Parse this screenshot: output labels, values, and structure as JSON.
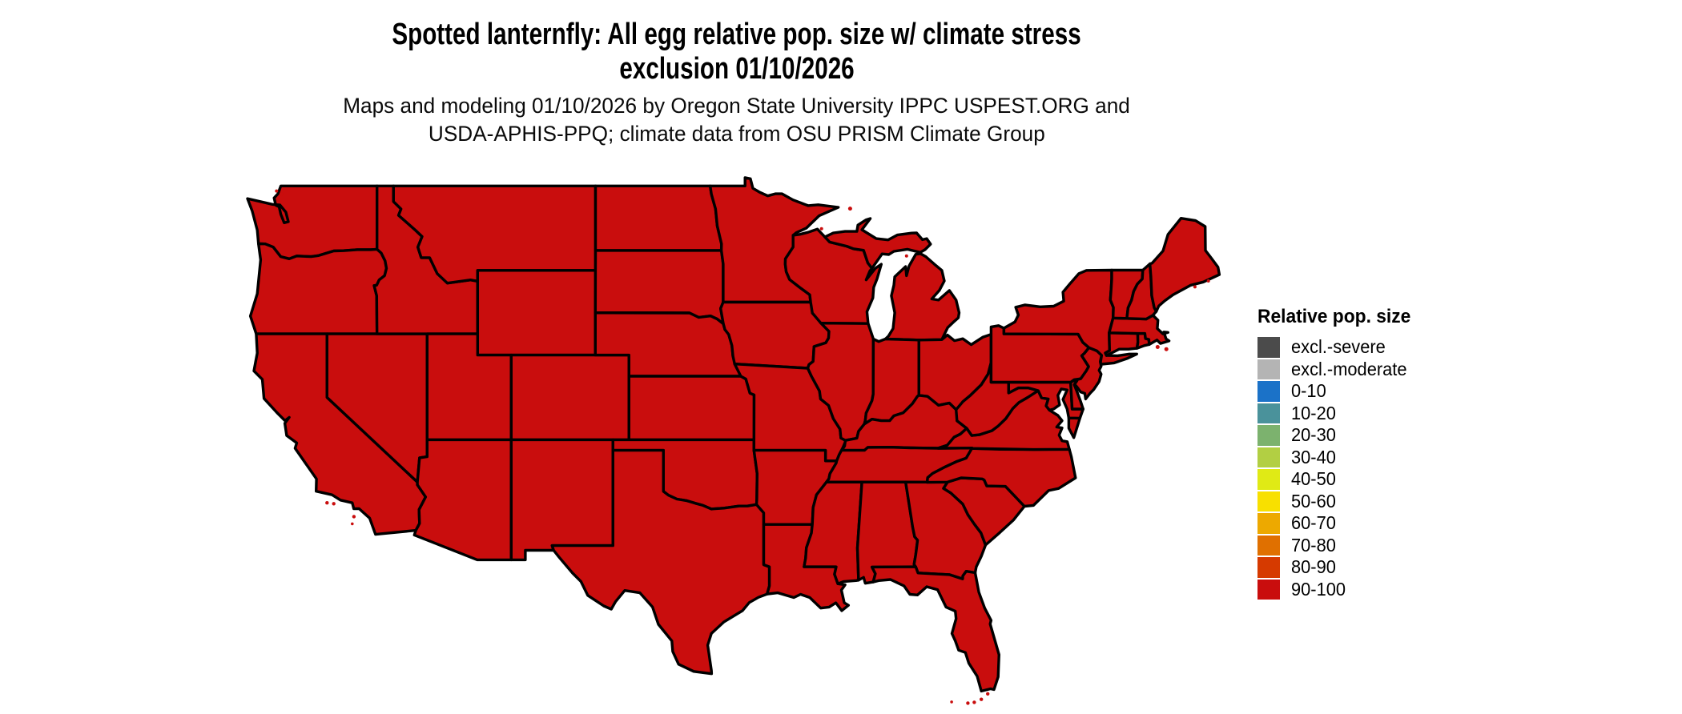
{
  "figure": {
    "title_line1": "Spotted lanternfly: All egg relative pop. size w/ climate stress",
    "title_line2": "exclusion 01/10/2026",
    "subtitle_line1": "Maps and modeling 01/10/2026 by Oregon State University IPPC USPEST.ORG and",
    "subtitle_line2": "USDA-APHIS-PPQ; climate data from OSU PRISM Climate Group"
  },
  "legend": {
    "title": "Relative pop. size",
    "items": [
      {
        "label": "excl.-severe",
        "color": "#4b4b4b"
      },
      {
        "label": "excl.-moderate",
        "color": "#b4b4b4"
      },
      {
        "label": "0-10",
        "color": "#1b72c8"
      },
      {
        "label": "10-20",
        "color": "#4a929b"
      },
      {
        "label": "20-30",
        "color": "#7cb26e"
      },
      {
        "label": "30-40",
        "color": "#b2cf43"
      },
      {
        "label": "40-50",
        "color": "#e0ea15"
      },
      {
        "label": "50-60",
        "color": "#f8e000"
      },
      {
        "label": "60-70",
        "color": "#eda900"
      },
      {
        "label": "70-80",
        "color": "#e07000"
      },
      {
        "label": "80-90",
        "color": "#d63a00"
      },
      {
        "label": "90-100",
        "color": "#c90d0d"
      }
    ]
  },
  "map": {
    "region": "contiguous United States",
    "all_states_class": "90-100",
    "fill_color": "#c90d0d",
    "border_color": "#000000",
    "water_color": "#ffffff"
  }
}
